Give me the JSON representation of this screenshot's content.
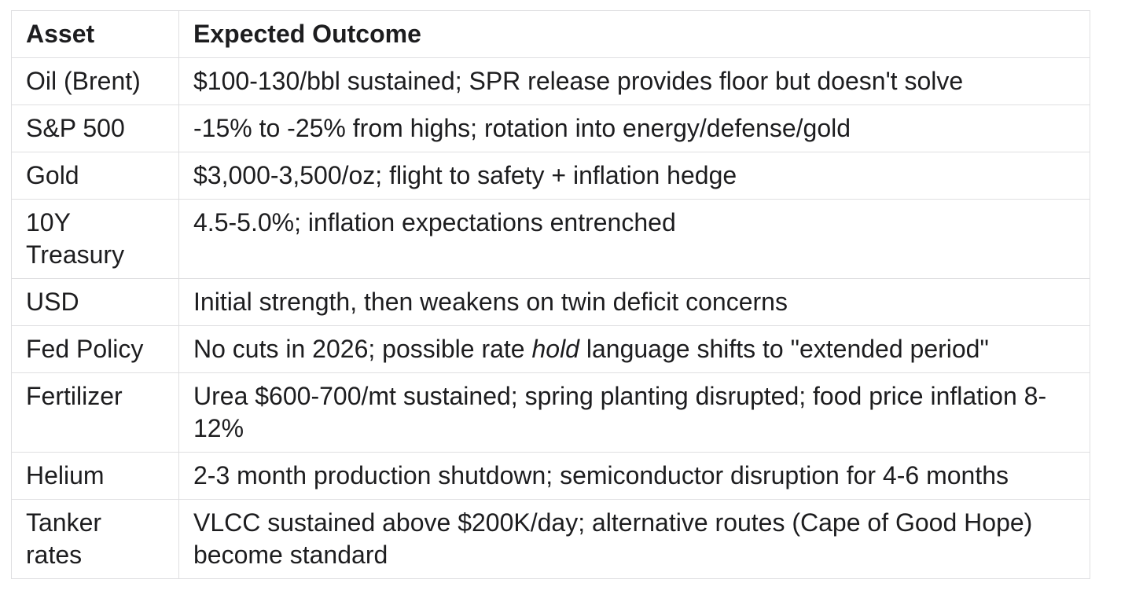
{
  "colors": {
    "background": "#ffffff",
    "text": "#1d1d1f",
    "border": "#dfdfe1"
  },
  "table": {
    "headers": [
      "Asset",
      "Expected Outcome"
    ],
    "rows": [
      {
        "asset": "Oil (Brent)",
        "outcome": [
          {
            "text": "$100-130/bbl sustained; SPR release provides floor but doesn't solve"
          }
        ]
      },
      {
        "asset": "S&P 500",
        "outcome": [
          {
            "text": "-15% to -25% from highs; rotation into energy/defense/gold"
          }
        ]
      },
      {
        "asset": "Gold",
        "outcome": [
          {
            "text": "$3,000-3,500/oz; flight to safety + inflation hedge"
          }
        ]
      },
      {
        "asset": "10Y Treasury",
        "outcome": [
          {
            "text": "4.5-5.0%; inflation expectations entrenched"
          }
        ]
      },
      {
        "asset": "USD",
        "outcome": [
          {
            "text": "Initial strength, then weakens on twin deficit concerns"
          }
        ]
      },
      {
        "asset": "Fed Policy",
        "outcome": [
          {
            "text": "No cuts in 2026; possible rate "
          },
          {
            "text": "hold",
            "italic": true
          },
          {
            "text": " language shifts to \"extended period\""
          }
        ]
      },
      {
        "asset": "Fertilizer",
        "outcome": [
          {
            "text": "Urea $600-700/mt sustained; spring planting disrupted; food price inflation 8-12%"
          }
        ]
      },
      {
        "asset": "Helium",
        "outcome": [
          {
            "text": "2-3 month production shutdown; semiconductor disruption for 4-6 months"
          }
        ]
      },
      {
        "asset": "Tanker rates",
        "outcome": [
          {
            "text": "VLCC sustained above $200K/day; alternative routes (Cape of Good Hope) become standard"
          }
        ]
      }
    ]
  }
}
